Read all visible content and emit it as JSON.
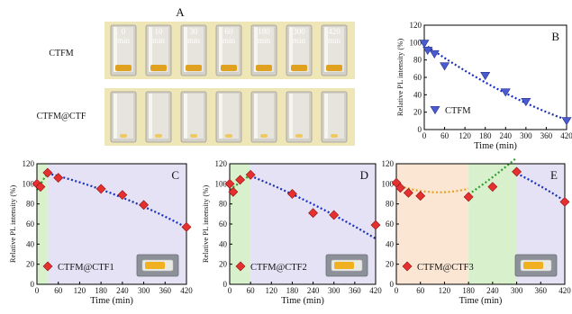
{
  "panel_a": {
    "letter": "A",
    "rows": [
      {
        "label": "CTFM",
        "tone": "orange"
      },
      {
        "label": "CTFM@CTF",
        "tone": "pale"
      }
    ],
    "vial_times": [
      {
        "value": "0",
        "unit": "min"
      },
      {
        "value": "10",
        "unit": "min"
      },
      {
        "value": "30",
        "unit": "min"
      },
      {
        "value": "60",
        "unit": "min"
      },
      {
        "value": "180",
        "unit": "min"
      },
      {
        "value": "300",
        "unit": "min"
      },
      {
        "value": "420",
        "unit": "min"
      }
    ],
    "colors": {
      "panel_bg": "#efe6b8",
      "vial": "#d4d2c8",
      "orange_deposit": "#e0a020",
      "pale_deposit": "#f0c860"
    }
  },
  "chart_data": [
    {
      "id": "B",
      "type": "scatter",
      "panel_letter": "B",
      "xlabel": "Time (min)",
      "ylabel": "Relative PL intensity (%)",
      "xlim": [
        0,
        420
      ],
      "ylim": [
        0,
        120
      ],
      "xticks": [
        0,
        60,
        120,
        180,
        240,
        300,
        360,
        420
      ],
      "yticks": [
        0,
        20,
        40,
        60,
        80,
        100,
        120
      ],
      "marker": "triangle-down",
      "marker_color": "#4a5bd0",
      "fit_color": "#1a2fb8",
      "series": [
        {
          "name": "CTFM",
          "x": [
            0,
            10,
            30,
            60,
            180,
            240,
            300,
            420
          ],
          "y": [
            99,
            91,
            87,
            73,
            62,
            43,
            32,
            10
          ]
        }
      ],
      "fit": [
        {
          "x": [
            0,
            420
          ],
          "coef": [
            98,
            -0.27,
            0.00015
          ],
          "color": "#1a2fb8"
        }
      ],
      "bands": [],
      "legend": "bottom-left",
      "inset_vial": false
    },
    {
      "id": "C",
      "type": "scatter",
      "panel_letter": "C",
      "xlabel": "Time (min)",
      "ylabel": "Relative PL intensity (%)",
      "xlim": [
        0,
        420
      ],
      "ylim": [
        0,
        120
      ],
      "xticks": [
        0,
        60,
        120,
        180,
        240,
        300,
        360,
        420
      ],
      "yticks": [
        0,
        20,
        40,
        60,
        80,
        100,
        120
      ],
      "marker": "diamond",
      "marker_color": "#e63030",
      "series": [
        {
          "name": "CTFM@CTF1",
          "x": [
            0,
            10,
            30,
            60,
            180,
            240,
            300,
            420
          ],
          "y": [
            100,
            97,
            111,
            106,
            95,
            89,
            79,
            57
          ]
        }
      ],
      "fit": [
        {
          "x": [
            0,
            30
          ],
          "coef": [
            94,
            0.57,
            0
          ],
          "color": "#2e9e2e"
        },
        {
          "x": [
            30,
            420
          ],
          "coef": [
            113,
            -0.08,
            -0.00013
          ],
          "color": "#1a2fb8"
        }
      ],
      "bands": [
        {
          "x": [
            0,
            30
          ],
          "color": "#d8f0cc"
        },
        {
          "x": [
            30,
            420
          ],
          "color": "#e4e2f4"
        }
      ],
      "legend": "bottom-left",
      "inset_vial": true
    },
    {
      "id": "D",
      "type": "scatter",
      "panel_letter": "D",
      "xlabel": "Time (min)",
      "ylabel": "Relative PL intensity (%)",
      "xlim": [
        0,
        420
      ],
      "ylim": [
        0,
        120
      ],
      "xticks": [
        0,
        60,
        120,
        180,
        240,
        300,
        360,
        420
      ],
      "yticks": [
        0,
        20,
        40,
        60,
        80,
        100,
        120
      ],
      "marker": "diamond",
      "marker_color": "#e63030",
      "series": [
        {
          "name": "CTFM@CTF2",
          "x": [
            0,
            10,
            30,
            60,
            180,
            240,
            300,
            420
          ],
          "y": [
            100,
            92,
            104,
            109,
            90,
            71,
            69,
            59
          ]
        }
      ],
      "fit": [
        {
          "x": [
            0,
            60
          ],
          "coef": [
            94,
            0.25,
            0
          ],
          "color": "#2e9e2e"
        },
        {
          "x": [
            60,
            420
          ],
          "coef": [
            116,
            -0.13,
            -9e-05
          ],
          "color": "#1a2fb8"
        }
      ],
      "bands": [
        {
          "x": [
            0,
            60
          ],
          "color": "#d8f0cc"
        },
        {
          "x": [
            60,
            420
          ],
          "color": "#e4e2f4"
        }
      ],
      "legend": "bottom-left",
      "inset_vial": true
    },
    {
      "id": "E",
      "type": "scatter",
      "panel_letter": "E",
      "xlabel": "Time (min)",
      "ylabel": "Relative PL intensity (%)",
      "xlim": [
        0,
        420
      ],
      "ylim": [
        0,
        120
      ],
      "xticks": [
        0,
        60,
        120,
        180,
        240,
        300,
        360,
        420
      ],
      "yticks": [
        0,
        20,
        40,
        60,
        80,
        100,
        120
      ],
      "marker": "diamond",
      "marker_color": "#e63030",
      "series": [
        {
          "name": "CTFM@CTF3",
          "x": [
            0,
            10,
            30,
            60,
            180,
            240,
            300,
            420
          ],
          "y": [
            101,
            96,
            91,
            88,
            87,
            97,
            112,
            82
          ]
        }
      ],
      "fit": [
        {
          "x": [
            0,
            180
          ],
          "coef": [
            99,
            -0.14,
            0.00066
          ],
          "color": "#e8a020"
        },
        {
          "x": [
            180,
            300
          ],
          "coef": [
            51,
            0.16,
            0.0003
          ],
          "color": "#2e9e2e"
        },
        {
          "x": [
            300,
            420
          ],
          "coef": [
            148,
            -0.05,
            -0.00025
          ],
          "color": "#1a2fb8"
        }
      ],
      "bands": [
        {
          "x": [
            0,
            180
          ],
          "color": "#fbe6d4"
        },
        {
          "x": [
            180,
            300
          ],
          "color": "#d8f0cc"
        },
        {
          "x": [
            300,
            420
          ],
          "color": "#e4e2f4"
        }
      ],
      "legend": "bottom-left",
      "inset_vial": true
    }
  ]
}
